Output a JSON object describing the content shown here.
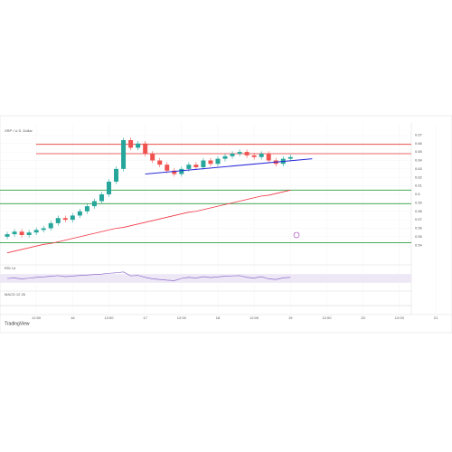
{
  "chart_data": {
    "type": "candlestick",
    "title": "XRP / U.S. Dollar",
    "watermark": "TradingView",
    "up_color": "#26a69a",
    "down_color": "#ef5350",
    "open": [
      0.55,
      0.553,
      0.556,
      0.552,
      0.555,
      0.558,
      0.56,
      0.566,
      0.572,
      0.57,
      0.575,
      0.58,
      0.586,
      0.592,
      0.6,
      0.615,
      0.63,
      0.664,
      0.655,
      0.66,
      0.648,
      0.64,
      0.635,
      0.628,
      0.624,
      0.63,
      0.635,
      0.632,
      0.64,
      0.636,
      0.642,
      0.645,
      0.648,
      0.65,
      0.646,
      0.644,
      0.648,
      0.64,
      0.636,
      0.642
    ],
    "high": [
      0.556,
      0.559,
      0.559,
      0.558,
      0.561,
      0.563,
      0.569,
      0.575,
      0.575,
      0.578,
      0.583,
      0.589,
      0.595,
      0.603,
      0.618,
      0.633,
      0.667,
      0.667,
      0.663,
      0.663,
      0.651,
      0.643,
      0.638,
      0.631,
      0.633,
      0.638,
      0.638,
      0.643,
      0.643,
      0.645,
      0.648,
      0.651,
      0.653,
      0.653,
      0.649,
      0.651,
      0.651,
      0.643,
      0.645,
      0.647
    ],
    "low": [
      0.547,
      0.55,
      0.549,
      0.549,
      0.552,
      0.555,
      0.557,
      0.563,
      0.567,
      0.567,
      0.572,
      0.577,
      0.583,
      0.589,
      0.597,
      0.612,
      0.627,
      0.652,
      0.652,
      0.645,
      0.637,
      0.632,
      0.625,
      0.621,
      0.621,
      0.627,
      0.629,
      0.629,
      0.633,
      0.633,
      0.639,
      0.642,
      0.645,
      0.643,
      0.641,
      0.641,
      0.637,
      0.633,
      0.633,
      0.639
    ],
    "close": [
      0.553,
      0.556,
      0.552,
      0.555,
      0.558,
      0.56,
      0.566,
      0.572,
      0.57,
      0.575,
      0.58,
      0.586,
      0.592,
      0.6,
      0.615,
      0.63,
      0.664,
      0.655,
      0.66,
      0.648,
      0.64,
      0.635,
      0.628,
      0.624,
      0.63,
      0.635,
      0.632,
      0.64,
      0.636,
      0.642,
      0.645,
      0.648,
      0.65,
      0.646,
      0.644,
      0.648,
      0.64,
      0.636,
      0.642,
      0.644
    ],
    "sma": {
      "color": "#f23645",
      "values": [
        0.531,
        0.533,
        0.535,
        0.537,
        0.539,
        0.541,
        0.542,
        0.544,
        0.546,
        0.548,
        0.55,
        0.552,
        0.554,
        0.556,
        0.558,
        0.56,
        0.561,
        0.563,
        0.565,
        0.567,
        0.569,
        0.571,
        0.573,
        0.575,
        0.577,
        0.579,
        0.58,
        0.582,
        0.584,
        0.586,
        0.588,
        0.59,
        0.592,
        0.594,
        0.596,
        0.598,
        0.599,
        0.601,
        0.603,
        0.605
      ]
    },
    "trendline": {
      "color": "#2a2ad8",
      "x": [
        19,
        42
      ],
      "values": [
        0.624,
        0.642
      ]
    },
    "resistance": {
      "color": "#e53935",
      "values": [
        0.659,
        0.648
      ]
    },
    "support": {
      "color": "#2e9e44",
      "values": [
        0.605,
        0.589,
        0.543
      ]
    },
    "ylim": [
      0.52,
      0.68
    ],
    "yticks": [
      0.54,
      0.55,
      0.56,
      0.57,
      0.58,
      0.59,
      0.6,
      0.61,
      0.62,
      0.63,
      0.64,
      0.65,
      0.66,
      0.67
    ],
    "xlim": [
      -1,
      60
    ],
    "xticks": [
      {
        "value": 4,
        "label": "12:00"
      },
      {
        "value": 9,
        "label": "16"
      },
      {
        "value": 14,
        "label": "12:00"
      },
      {
        "value": 19,
        "label": "17"
      },
      {
        "value": 24,
        "label": "12:00"
      },
      {
        "value": 29,
        "label": "18"
      },
      {
        "value": 34,
        "label": "12:00"
      },
      {
        "value": 39,
        "label": "19"
      },
      {
        "value": 44,
        "label": "12:00"
      },
      {
        "value": 49,
        "label": "20"
      },
      {
        "value": 54,
        "label": "12:00"
      },
      {
        "value": 59,
        "label": "21"
      }
    ],
    "rsi": {
      "name": "RSI 14",
      "color": "#7e57c2",
      "ylim": [
        0,
        100
      ],
      "band": [
        30,
        70
      ],
      "values": [
        50,
        52,
        48,
        51,
        55,
        57,
        60,
        63,
        58,
        61,
        64,
        66,
        68,
        70,
        74,
        76,
        80,
        62,
        64,
        55,
        48,
        45,
        42,
        40,
        50,
        55,
        52,
        58,
        54,
        57,
        60,
        62,
        63,
        55,
        52,
        58,
        48,
        45,
        53,
        55
      ]
    },
    "macd_label": "MACD 12 26"
  }
}
